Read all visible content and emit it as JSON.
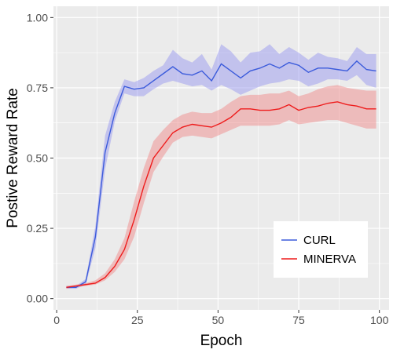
{
  "chart_data": {
    "type": "line",
    "title": "",
    "xlabel": "Epoch",
    "ylabel": "Postive Reward Rate",
    "xlim": [
      -1,
      103
    ],
    "ylim": [
      -0.04,
      1.04
    ],
    "x_ticks": [
      0,
      25,
      50,
      75,
      100
    ],
    "x_tick_labels": [
      "0",
      "25",
      "50",
      "75",
      "100"
    ],
    "y_ticks": [
      0,
      0.25,
      0.5,
      0.75,
      1.0
    ],
    "y_tick_labels": [
      "0.00",
      "0.25",
      "0.50",
      "0.75",
      "1.00"
    ],
    "grid": true,
    "legend_position": "bottom-right",
    "series": [
      {
        "name": "CURL",
        "color": "#3b5bdb",
        "band_color": "#9090f0",
        "x": [
          3,
          6,
          9,
          12,
          15,
          18,
          21,
          24,
          27,
          30,
          33,
          36,
          39,
          42,
          45,
          48,
          51,
          54,
          57,
          60,
          63,
          66,
          69,
          72,
          75,
          78,
          81,
          84,
          87,
          90,
          93,
          96,
          99
        ],
        "y": [
          0.04,
          0.04,
          0.06,
          0.22,
          0.52,
          0.66,
          0.755,
          0.745,
          0.75,
          0.775,
          0.8,
          0.825,
          0.8,
          0.795,
          0.81,
          0.775,
          0.835,
          0.81,
          0.785,
          0.81,
          0.82,
          0.835,
          0.82,
          0.84,
          0.83,
          0.805,
          0.82,
          0.82,
          0.815,
          0.81,
          0.845,
          0.815,
          0.81
        ],
        "lower": [
          0.035,
          0.035,
          0.05,
          0.18,
          0.46,
          0.63,
          0.73,
          0.72,
          0.72,
          0.745,
          0.765,
          0.775,
          0.765,
          0.755,
          0.76,
          0.74,
          0.76,
          0.745,
          0.725,
          0.74,
          0.755,
          0.765,
          0.77,
          0.78,
          0.775,
          0.755,
          0.765,
          0.78,
          0.78,
          0.775,
          0.795,
          0.76,
          0.75
        ],
        "upper": [
          0.045,
          0.045,
          0.07,
          0.26,
          0.58,
          0.7,
          0.78,
          0.77,
          0.785,
          0.81,
          0.83,
          0.885,
          0.855,
          0.84,
          0.87,
          0.815,
          0.905,
          0.88,
          0.84,
          0.875,
          0.88,
          0.905,
          0.87,
          0.895,
          0.875,
          0.85,
          0.875,
          0.86,
          0.855,
          0.845,
          0.895,
          0.87,
          0.87
        ]
      },
      {
        "name": "MINERVA",
        "color": "#ee1c1c",
        "band_color": "#f08080",
        "x": [
          3,
          6,
          9,
          12,
          15,
          18,
          21,
          24,
          27,
          30,
          33,
          36,
          39,
          42,
          45,
          48,
          51,
          54,
          57,
          60,
          63,
          66,
          69,
          72,
          75,
          78,
          81,
          84,
          87,
          90,
          93,
          96,
          99
        ],
        "y": [
          0.04,
          0.045,
          0.05,
          0.055,
          0.075,
          0.115,
          0.175,
          0.28,
          0.4,
          0.5,
          0.545,
          0.59,
          0.61,
          0.62,
          0.615,
          0.61,
          0.625,
          0.645,
          0.675,
          0.675,
          0.67,
          0.67,
          0.675,
          0.69,
          0.67,
          0.68,
          0.685,
          0.695,
          0.7,
          0.69,
          0.685,
          0.675,
          0.675
        ],
        "lower": [
          0.035,
          0.04,
          0.045,
          0.05,
          0.065,
          0.095,
          0.14,
          0.22,
          0.34,
          0.45,
          0.505,
          0.555,
          0.575,
          0.58,
          0.575,
          0.57,
          0.585,
          0.6,
          0.615,
          0.615,
          0.615,
          0.615,
          0.62,
          0.635,
          0.62,
          0.625,
          0.63,
          0.635,
          0.635,
          0.625,
          0.615,
          0.605,
          0.605
        ],
        "upper": [
          0.045,
          0.05,
          0.055,
          0.065,
          0.09,
          0.14,
          0.215,
          0.345,
          0.465,
          0.56,
          0.6,
          0.635,
          0.655,
          0.665,
          0.66,
          0.66,
          0.675,
          0.7,
          0.72,
          0.725,
          0.725,
          0.73,
          0.73,
          0.74,
          0.72,
          0.73,
          0.745,
          0.755,
          0.76,
          0.75,
          0.745,
          0.74,
          0.74
        ]
      }
    ]
  }
}
